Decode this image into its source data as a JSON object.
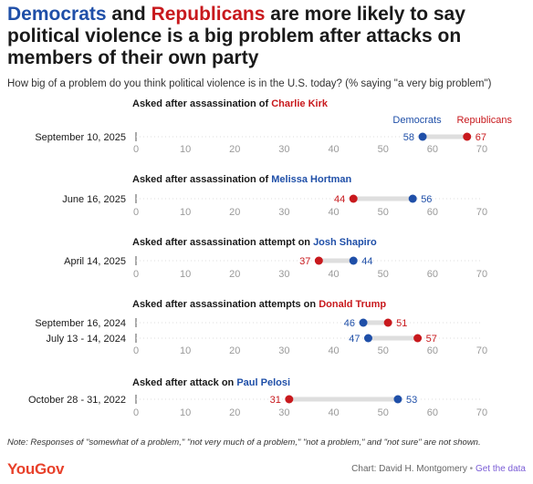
{
  "title": {
    "part1": "Democrats",
    "part2": " and ",
    "part3": "Republicans",
    "part4": " are more likely to say political violence is a big problem after attacks on members of their own party"
  },
  "subtitle": "How big of a problem do you think political violence is in the U.S. today? (% saying \"a very big problem\")",
  "colors": {
    "democrats": "#1f4fa8",
    "republicans": "#c8191d",
    "connector": "#dedede",
    "tick": "#9a9a9a"
  },
  "chart_data": {
    "type": "dot",
    "xlim": [
      0,
      70
    ],
    "xticks": [
      0,
      10,
      20,
      30,
      40,
      50,
      60,
      70
    ],
    "legend": [
      "Democrats",
      "Republicans"
    ],
    "groups": [
      {
        "heading_prefix": "Asked after assassination of ",
        "heading_name": "Charlie Kirk",
        "heading_party": "rep",
        "rows": [
          {
            "date": "September 10, 2025",
            "democrats": 58,
            "republicans": 67
          }
        ]
      },
      {
        "heading_prefix": "Asked after assassination of ",
        "heading_name": "Melissa Hortman",
        "heading_party": "dem",
        "rows": [
          {
            "date": "June 16, 2025",
            "democrats": 56,
            "republicans": 44
          }
        ]
      },
      {
        "heading_prefix": "Asked after assassination attempt on ",
        "heading_name": "Josh Shapiro",
        "heading_party": "dem",
        "rows": [
          {
            "date": "April 14, 2025",
            "democrats": 44,
            "republicans": 37
          }
        ]
      },
      {
        "heading_prefix": "Asked after assassination attempts on ",
        "heading_name": "Donald Trump",
        "heading_party": "rep",
        "rows": [
          {
            "date": "September 16, 2024",
            "democrats": 46,
            "republicans": 51
          },
          {
            "date": "July 13 - 14, 2024",
            "democrats": 47,
            "republicans": 57
          }
        ]
      },
      {
        "heading_prefix": "Asked after attack on ",
        "heading_name": "Paul Pelosi",
        "heading_party": "dem",
        "rows": [
          {
            "date": "October 28 - 31, 2022",
            "democrats": 53,
            "republicans": 31
          }
        ]
      }
    ]
  },
  "note": "Note: Responses of \"somewhat of a problem,\" \"not very much of a problem,\" \"not a problem,\" and \"not sure\" are not shown.",
  "footer": {
    "logo": "YouGov",
    "credit": "Chart: David H. Montgomery",
    "separator": " • ",
    "link": "Get the data"
  }
}
